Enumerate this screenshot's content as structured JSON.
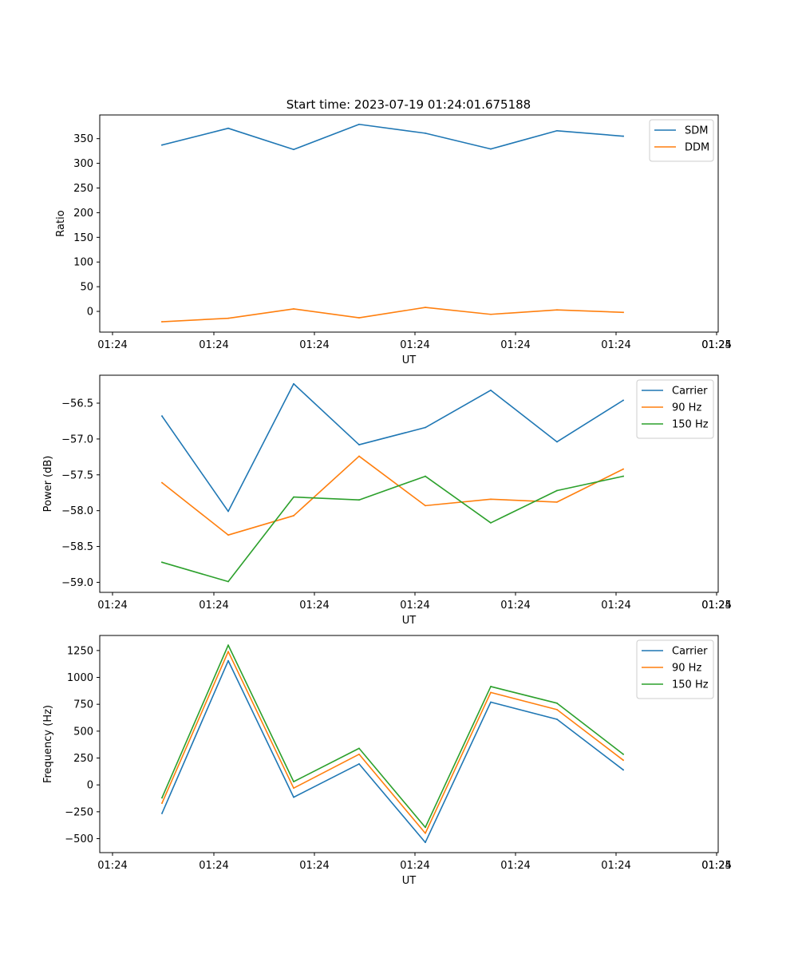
{
  "figure_title": "Start time: 2023-07-19 01:24:01.675188",
  "colors": {
    "blue": "#1f77b4",
    "orange": "#ff7f0e",
    "green": "#2ca02c"
  },
  "chart_data": [
    {
      "type": "line",
      "title": "Start time: 2023-07-19 01:24:01.675188",
      "xlabel": "UT",
      "ylabel": "Ratio",
      "x_tick_labels": [
        "01:24",
        "01:24",
        "01:24",
        "01:24",
        "01:24",
        "01:24",
        "01:24"
      ],
      "x_last_tick_label": "01:25",
      "ylim": [
        -42,
        398
      ],
      "y_ticks": [
        0,
        50,
        100,
        150,
        200,
        250,
        300,
        350
      ],
      "y_tick_labels": [
        "0",
        "50",
        "100",
        "150",
        "200",
        "250",
        "300",
        "350"
      ],
      "legend_position": "top-right",
      "series": [
        {
          "name": "SDM",
          "color": "#1f77b4",
          "values": [
            337,
            371,
            328,
            379,
            361,
            329,
            366,
            355
          ]
        },
        {
          "name": "DDM",
          "color": "#ff7f0e",
          "values": [
            -21,
            -14,
            5,
            -13,
            8,
            -6,
            3,
            -2
          ]
        }
      ]
    },
    {
      "type": "line",
      "title": "",
      "xlabel": "UT",
      "ylabel": "Power (dB)",
      "x_tick_labels": [
        "01:24",
        "01:24",
        "01:24",
        "01:24",
        "01:24",
        "01:24",
        "01:24"
      ],
      "x_last_tick_label": "01:25",
      "ylim": [
        -59.14,
        -56.11
      ],
      "y_ticks": [
        -59.0,
        -58.5,
        -58.0,
        -57.5,
        -57.0,
        -56.5
      ],
      "y_tick_labels": [
        "−59.0",
        "−58.5",
        "−58.0",
        "−57.5",
        "−57.0",
        "−56.5"
      ],
      "legend_position": "top-right",
      "series": [
        {
          "name": "Carrier",
          "color": "#1f77b4",
          "values": [
            -56.68,
            -58.01,
            -56.23,
            -57.08,
            -56.84,
            -56.32,
            -57.04,
            -56.46
          ]
        },
        {
          "name": "90 Hz",
          "color": "#ff7f0e",
          "values": [
            -57.61,
            -58.34,
            -58.07,
            -57.24,
            -57.93,
            -57.84,
            -57.88,
            -57.42
          ]
        },
        {
          "name": "150 Hz",
          "color": "#2ca02c",
          "values": [
            -58.72,
            -58.99,
            -57.81,
            -57.85,
            -57.52,
            -58.17,
            -57.72,
            -57.52
          ]
        }
      ]
    },
    {
      "type": "line",
      "title": "",
      "xlabel": "UT",
      "ylabel": "Frequency (Hz)",
      "x_tick_labels": [
        "01:24",
        "01:24",
        "01:24",
        "01:24",
        "01:24",
        "01:24",
        "01:24"
      ],
      "x_last_tick_label": "01:25",
      "ylim": [
        -630,
        1390
      ],
      "y_ticks": [
        -500,
        -250,
        0,
        250,
        500,
        750,
        1000,
        1250
      ],
      "y_tick_labels": [
        "−500",
        "−250",
        "0",
        "250",
        "500",
        "750",
        "1000",
        "1250"
      ],
      "legend_position": "top-right",
      "series": [
        {
          "name": "Carrier",
          "color": "#1f77b4",
          "values": [
            -265,
            1155,
            -115,
            195,
            -535,
            770,
            610,
            140
          ]
        },
        {
          "name": "90 Hz",
          "color": "#ff7f0e",
          "values": [
            -170,
            1240,
            -30,
            285,
            -450,
            860,
            700,
            230
          ]
        },
        {
          "name": "150 Hz",
          "color": "#2ca02c",
          "values": [
            -120,
            1300,
            30,
            340,
            -395,
            915,
            760,
            285
          ]
        }
      ]
    }
  ]
}
